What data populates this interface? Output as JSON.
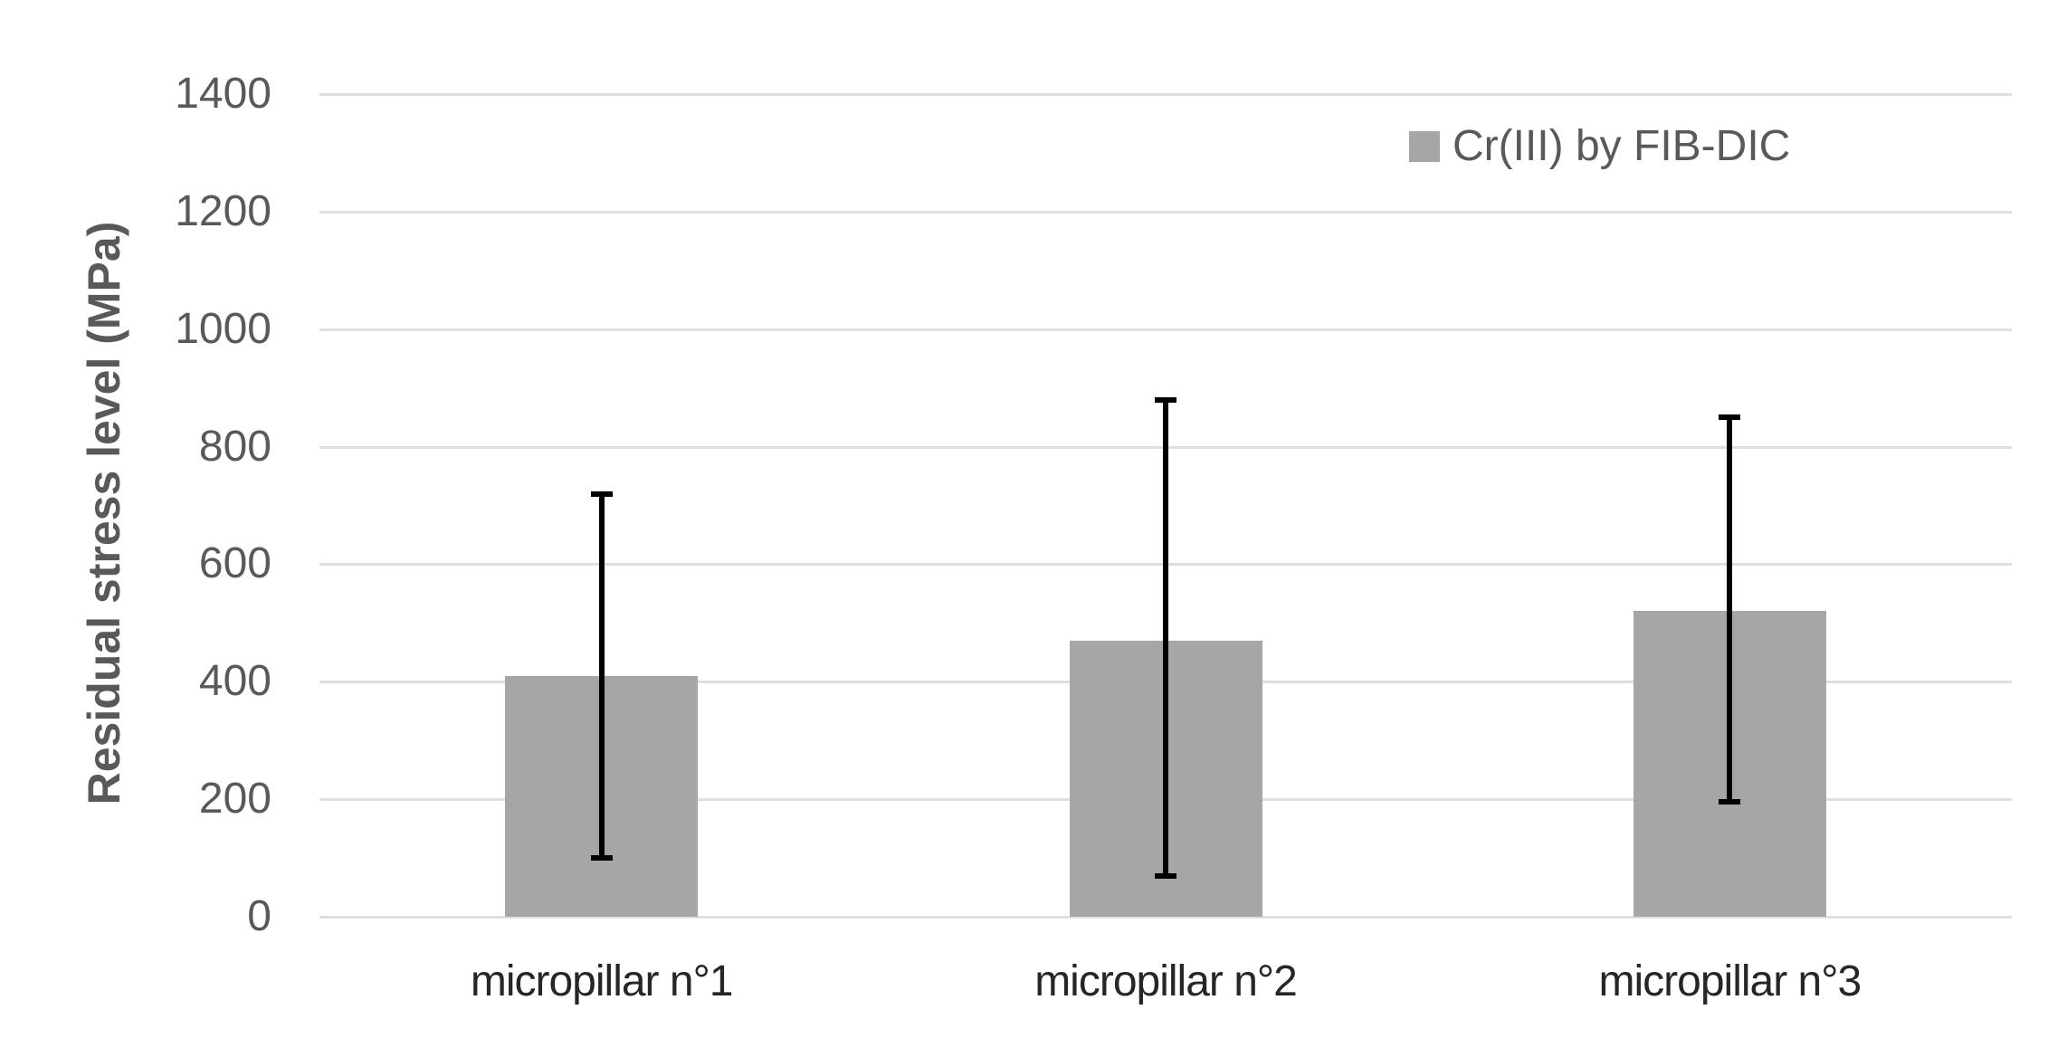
{
  "chart_data": {
    "type": "bar",
    "title": "",
    "xlabel": "",
    "ylabel": "Residual stress level (MPa)",
    "categories": [
      "micropillar n°1",
      "micropillar n°2",
      "micropillar n°3"
    ],
    "series": [
      {
        "name": "Cr(III) by FIB-DIC",
        "values": [
          410,
          470,
          520
        ],
        "error_low": [
          100,
          70,
          195
        ],
        "error_high": [
          720,
          880,
          850
        ]
      }
    ],
    "ylim": [
      0,
      1400
    ],
    "yticks": [
      0,
      200,
      400,
      600,
      800,
      1000,
      1200,
      1400
    ],
    "ytick_labels": [
      "0",
      "200",
      "400",
      "600",
      "800",
      "1000",
      "1200",
      "1400"
    ],
    "grid": "horizontal",
    "legend_position": "top-right",
    "colors": {
      "bar_fill": "#a6a6a6",
      "error_bar": "#000000",
      "gridline": "#dfdfdf",
      "y_tick_label": "#595959",
      "x_category_label": "#262626",
      "axis_title": "#595959",
      "legend_text": "#595959",
      "background": "#ffffff"
    }
  }
}
